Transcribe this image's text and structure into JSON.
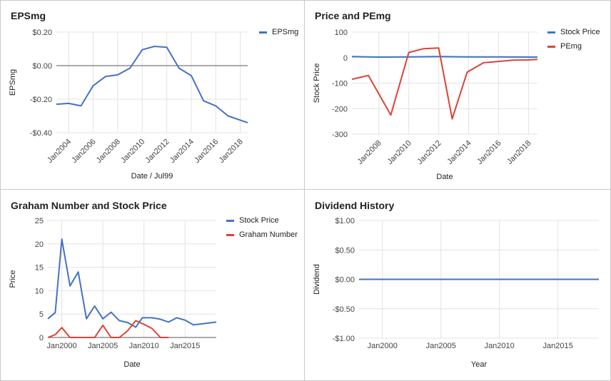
{
  "chart_data": [
    {
      "id": "eps",
      "type": "line",
      "title": "EPSmg",
      "xlabel": "Date / Jul99",
      "ylabel": "EPSmg",
      "xlim": [
        2003,
        2018.6
      ],
      "ylim": [
        -0.4,
        0.2
      ],
      "x_ticks": [
        2004,
        2006,
        2008,
        2010,
        2012,
        2014,
        2016,
        2018
      ],
      "x_tick_labels": [
        "Jan2004",
        "Jan2006",
        "Jan2008",
        "Jan2010",
        "Jan2012",
        "Jan2014",
        "Jan2016",
        "Jan2018"
      ],
      "y_ticks": [
        0.2,
        0.0,
        -0.2,
        -0.4
      ],
      "y_tick_labels": [
        "$0.20",
        "$0.00",
        "-$0.20",
        "-$0.40"
      ],
      "zero_line": true,
      "legend": "top-right",
      "series": [
        {
          "name": "EPSmg",
          "color": "#4472c4",
          "x": [
            2003.0,
            2004.0,
            2005.0,
            2006.0,
            2007.0,
            2008.0,
            2009.0,
            2010.0,
            2011.0,
            2012.0,
            2013.0,
            2014.0,
            2015.0,
            2016.0,
            2017.0,
            2018.0,
            2018.6
          ],
          "y": [
            -0.23,
            -0.225,
            -0.24,
            -0.12,
            -0.065,
            -0.055,
            -0.015,
            0.095,
            0.115,
            0.11,
            -0.015,
            -0.06,
            -0.21,
            -0.24,
            -0.3,
            -0.325,
            -0.34
          ]
        }
      ]
    },
    {
      "id": "price_pe",
      "type": "line",
      "title": "Price and PEmg",
      "xlabel": "Date",
      "ylabel": "Stock Price",
      "xlim": [
        2006.2,
        2018.6
      ],
      "ylim": [
        -300,
        100
      ],
      "x_ticks": [
        2008,
        2010,
        2012,
        2014,
        2016,
        2018
      ],
      "x_tick_labels": [
        "Jan2008",
        "Jan2010",
        "Jan2012",
        "Jan2014",
        "Jan2016",
        "Jan2018"
      ],
      "y_ticks": [
        100,
        0,
        -100,
        -200,
        -300
      ],
      "y_tick_labels": [
        "100",
        "0",
        "-100",
        "-200",
        "-300"
      ],
      "legend": "top-right",
      "series": [
        {
          "name": "Stock Price",
          "color": "#4472c4",
          "x": [
            2006.2,
            2008,
            2010,
            2012,
            2014,
            2016,
            2018.6
          ],
          "y": [
            4,
            2,
            3,
            4,
            3,
            3,
            2
          ]
        },
        {
          "name": "PEmg",
          "color": "#db4437",
          "x": [
            2006.2,
            2007.3,
            2008.8,
            2010.0,
            2011.0,
            2012.0,
            2012.9,
            2013.9,
            2015.0,
            2016.0,
            2017.0,
            2018.0,
            2018.6
          ],
          "y": [
            -85,
            -70,
            -225,
            20,
            35,
            38,
            -240,
            -57,
            -20,
            -15,
            -10,
            -9,
            -7
          ]
        }
      ]
    },
    {
      "id": "graham",
      "type": "line",
      "title": "Graham Number and Stock Price",
      "xlabel": "Date",
      "ylabel": "Price",
      "xlim": [
        1998.3,
        2018.8
      ],
      "ylim": [
        0,
        25
      ],
      "x_ticks": [
        2000,
        2005,
        2010,
        2015
      ],
      "x_tick_labels": [
        "Jan2000",
        "Jan2005",
        "Jan2010",
        "Jan2015"
      ],
      "y_ticks": [
        0,
        5,
        10,
        15,
        20,
        25
      ],
      "y_tick_labels": [
        "0",
        "5",
        "10",
        "15",
        "20",
        "25"
      ],
      "legend": "top-right",
      "series": [
        {
          "name": "Stock Price",
          "color": "#4472c4",
          "x": [
            1998.3,
            1999.2,
            2000.0,
            2001.0,
            2002.0,
            2003.0,
            2004.0,
            2005.0,
            2006.0,
            2007.0,
            2008.0,
            2009.0,
            2009.8,
            2011.0,
            2012.0,
            2013.0,
            2014.0,
            2015.0,
            2016.0,
            2017.0,
            2018.8
          ],
          "y": [
            4,
            5.3,
            21,
            11,
            14,
            4,
            6.7,
            4,
            5.4,
            3.6,
            3.2,
            2.2,
            4.2,
            4.2,
            3.9,
            3.3,
            4.2,
            3.7,
            2.7,
            2.9,
            3.3
          ]
        },
        {
          "name": "Graham Number",
          "color": "#db4437",
          "x": [
            1998.3,
            1999.2,
            2000.0,
            2001.0,
            2004.0,
            2005.0,
            2006.0,
            2007.0,
            2008.0,
            2009.0,
            2010.0,
            2011.0,
            2012.0,
            2013.0
          ],
          "y": [
            0,
            0.6,
            2.1,
            0,
            0,
            2.6,
            0,
            0,
            1.4,
            3.6,
            2.8,
            1.9,
            0,
            0
          ]
        }
      ]
    },
    {
      "id": "dividend",
      "type": "line",
      "title": "Dividend History",
      "xlabel": "Year",
      "ylabel": "Dividend",
      "xlim": [
        1998,
        2018.5
      ],
      "ylim": [
        -1.0,
        1.0
      ],
      "x_ticks": [
        2000,
        2005,
        2010,
        2015
      ],
      "x_tick_labels": [
        "Jan2000",
        "Jan2005",
        "Jan2010",
        "Jan2015"
      ],
      "y_ticks": [
        1.0,
        0.5,
        0.0,
        -0.5,
        -1.0
      ],
      "y_tick_labels": [
        "$1.00",
        "$0.50",
        "$0.00",
        "-$0.50",
        "-$1.00"
      ],
      "legend": "none",
      "series": [
        {
          "name": "",
          "color": "#4472c4",
          "x": [
            1998,
            2018.5
          ],
          "y": [
            0,
            0
          ]
        }
      ]
    }
  ]
}
